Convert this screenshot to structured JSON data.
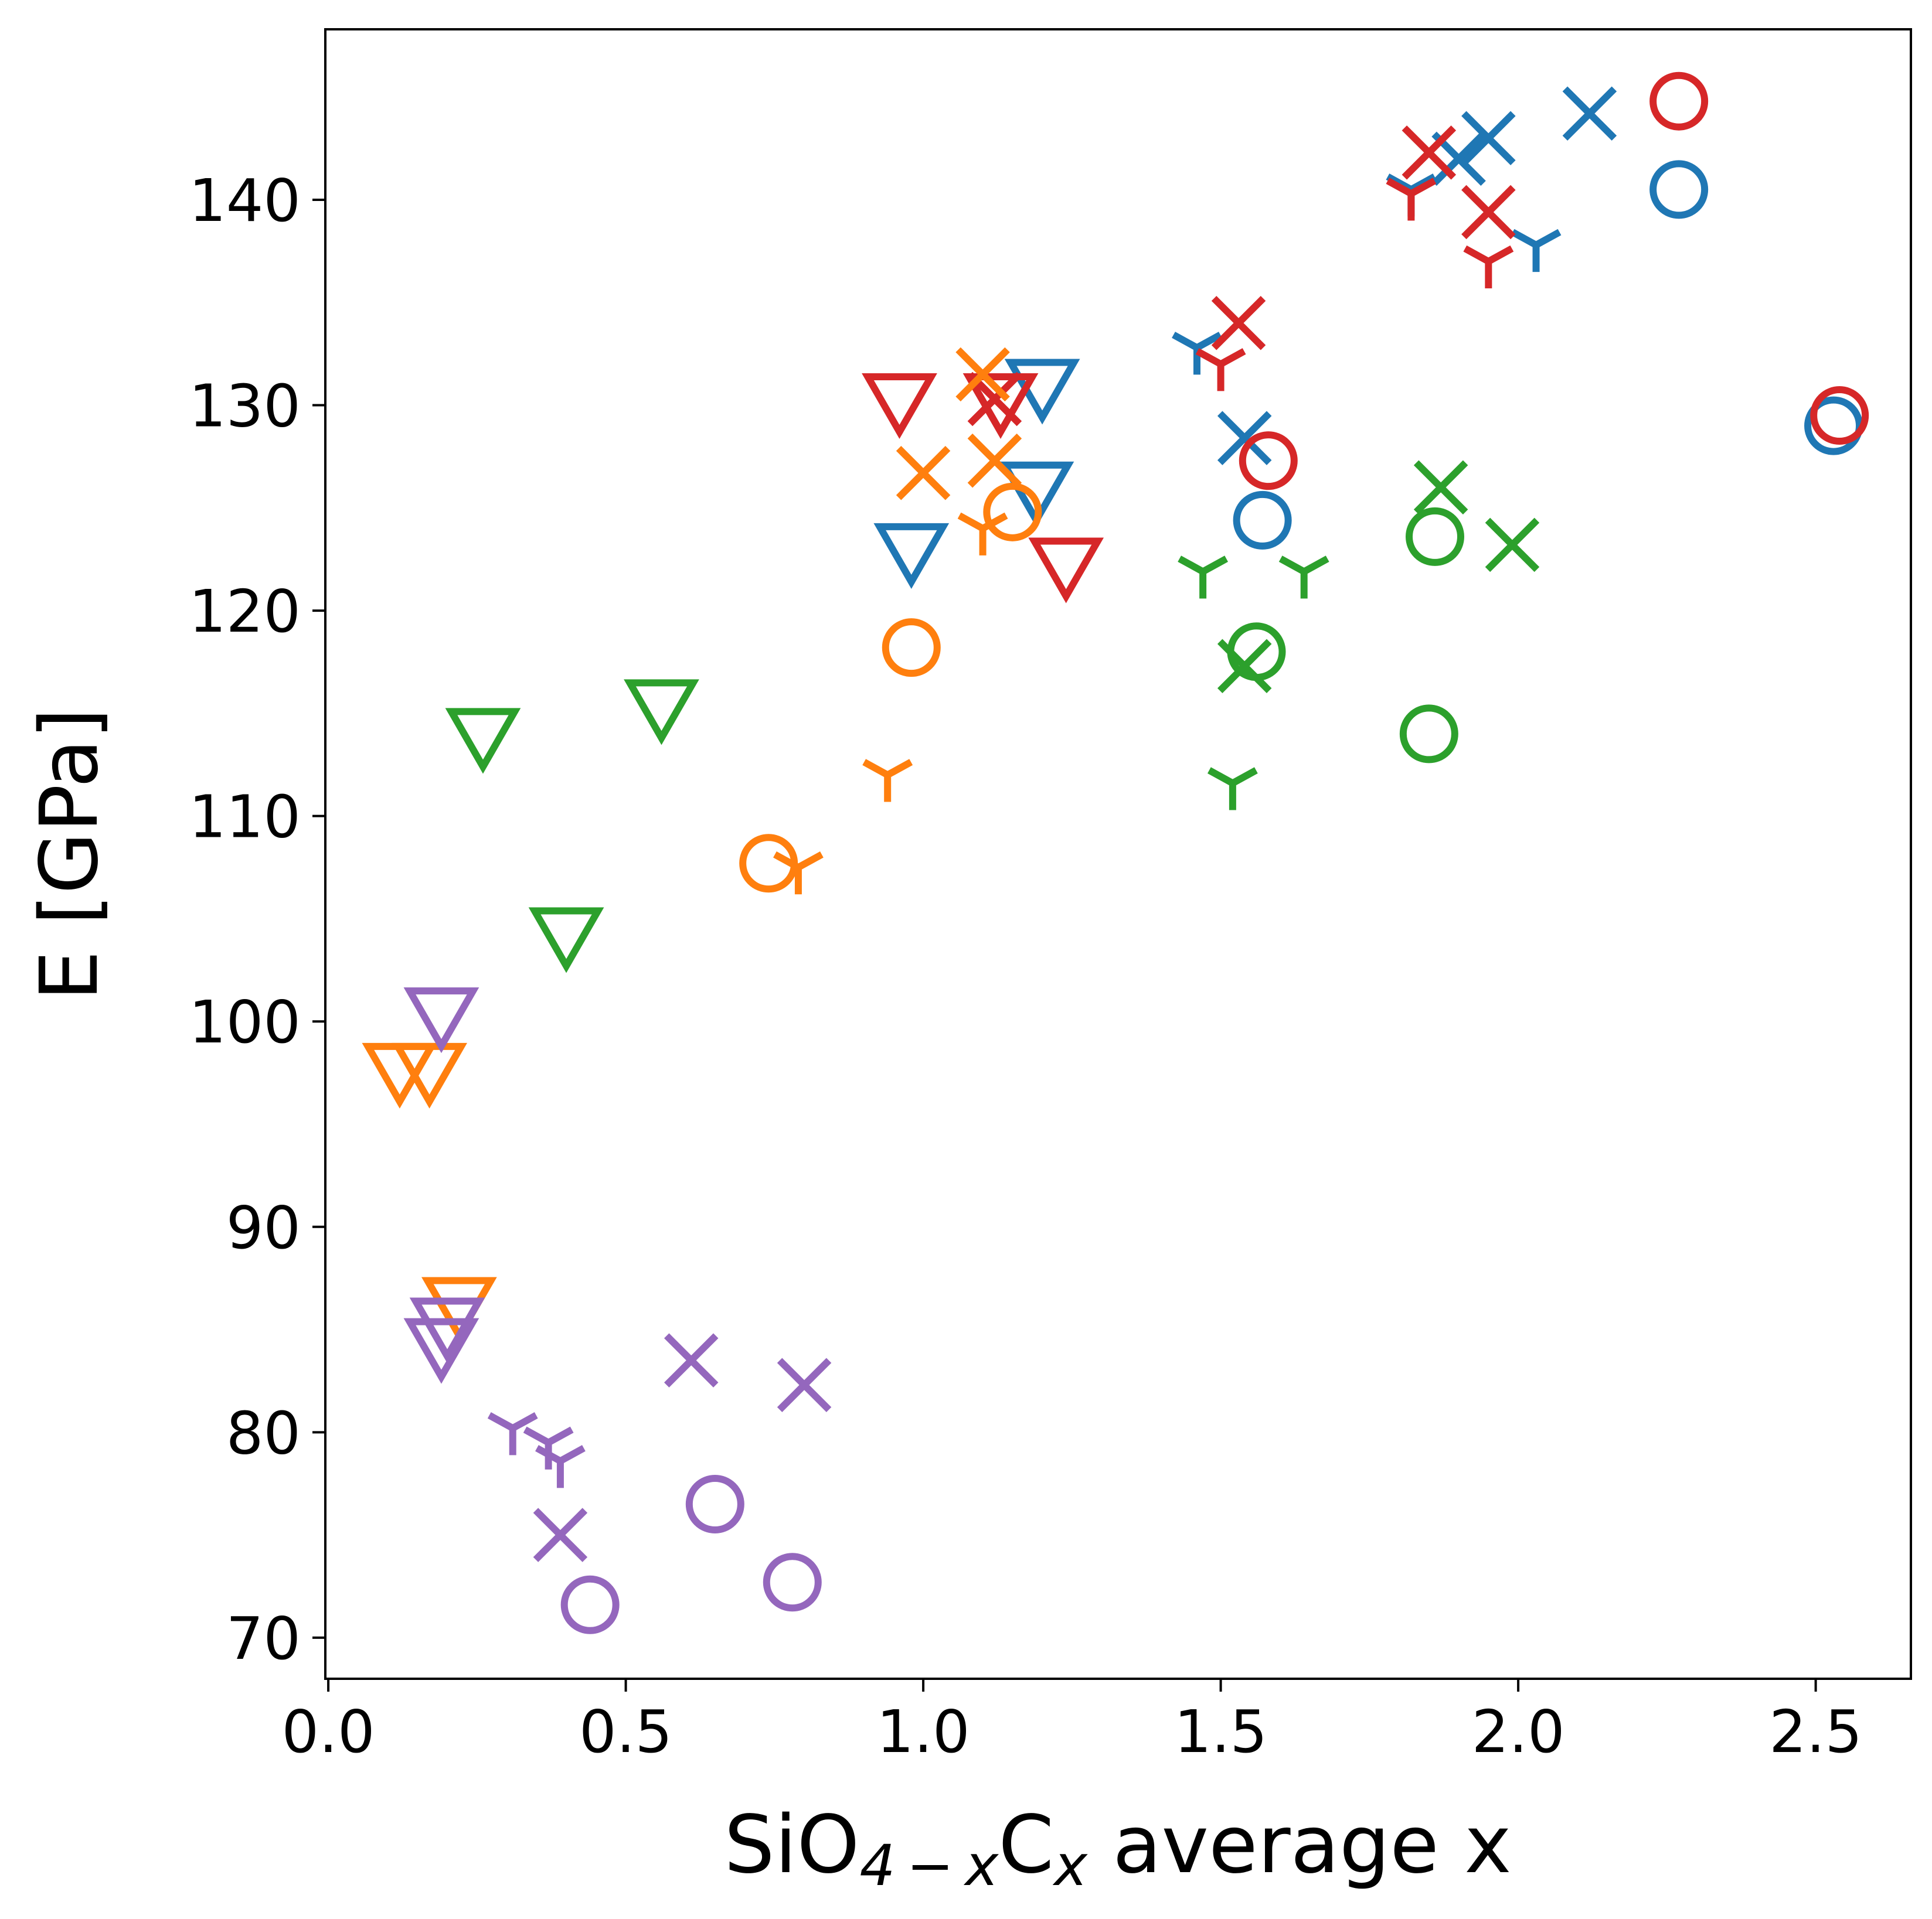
{
  "chart_data": {
    "type": "scatter",
    "title": "",
    "xlabel": {
      "base": "SiO",
      "sub1": "4 − x",
      "mid": "C",
      "sub2": "x",
      "tail": " average x"
    },
    "ylabel": "E [GPa]",
    "xlim": [
      -0.005,
      2.66
    ],
    "ylim": [
      68.0,
      148.3
    ],
    "xticks": [
      0.0,
      0.5,
      1.0,
      1.5,
      2.0,
      2.5
    ],
    "xtick_labels": [
      "0.0",
      "0.5",
      "1.0",
      "1.5",
      "2.0",
      "2.5"
    ],
    "yticks": [
      70,
      80,
      90,
      100,
      110,
      120,
      130,
      140
    ],
    "ytick_labels": [
      "70",
      "80",
      "90",
      "100",
      "110",
      "120",
      "130",
      "140"
    ],
    "grid": false,
    "legend": false,
    "series": [
      {
        "name": "blue",
        "color": "#1f77b4",
        "circle": [
          [
            2.27,
            140.5
          ],
          [
            1.57,
            124.4
          ],
          [
            2.53,
            129.0
          ]
        ],
        "x": [
          [
            1.9,
            142.0
          ],
          [
            1.95,
            143.0
          ],
          [
            2.12,
            144.2
          ],
          [
            1.54,
            128.4
          ]
        ],
        "tri": [
          [
            1.2,
            131.0
          ],
          [
            1.19,
            126.0
          ],
          [
            0.98,
            123.0
          ]
        ],
        "y": [
          [
            1.82,
            140.5
          ],
          [
            2.03,
            137.8
          ],
          [
            1.46,
            132.8
          ]
        ]
      },
      {
        "name": "red",
        "color": "#d62728",
        "circle": [
          [
            2.27,
            144.8
          ],
          [
            1.58,
            127.3
          ],
          [
            2.54,
            129.5
          ]
        ],
        "x": [
          [
            1.85,
            142.3
          ],
          [
            1.95,
            139.4
          ],
          [
            1.53,
            134.0
          ],
          [
            1.12,
            130.3
          ]
        ],
        "tri": [
          [
            0.96,
            130.3
          ],
          [
            1.13,
            130.3
          ],
          [
            1.24,
            122.3
          ]
        ],
        "y": [
          [
            1.82,
            140.3
          ],
          [
            1.95,
            137.0
          ],
          [
            1.5,
            132.0
          ]
        ]
      },
      {
        "name": "orange",
        "color": "#ff7f0e",
        "circle": [
          [
            1.15,
            124.8
          ],
          [
            0.98,
            118.2
          ],
          [
            0.74,
            107.7
          ]
        ],
        "x": [
          [
            1.1,
            131.5
          ],
          [
            1.0,
            126.7
          ],
          [
            1.12,
            127.3
          ]
        ],
        "tri": [
          [
            0.12,
            97.7
          ],
          [
            0.17,
            97.7
          ],
          [
            0.22,
            86.3
          ]
        ],
        "y": [
          [
            1.1,
            124.0
          ],
          [
            0.94,
            112.0
          ],
          [
            0.79,
            107.5
          ]
        ]
      },
      {
        "name": "green",
        "color": "#2ca02c",
        "circle": [
          [
            1.86,
            123.6
          ],
          [
            1.56,
            118.0
          ],
          [
            1.85,
            114.0
          ]
        ],
        "x": [
          [
            1.87,
            126.0
          ],
          [
            1.99,
            123.2
          ],
          [
            1.54,
            117.3
          ]
        ],
        "tri": [
          [
            0.26,
            114.0
          ],
          [
            0.56,
            115.4
          ],
          [
            0.4,
            104.3
          ]
        ],
        "y": [
          [
            1.47,
            121.9
          ],
          [
            1.64,
            121.9
          ],
          [
            1.52,
            111.6
          ]
        ]
      },
      {
        "name": "purple",
        "color": "#9467bd",
        "circle": [
          [
            0.65,
            76.5
          ],
          [
            0.78,
            72.7
          ],
          [
            0.44,
            71.6
          ]
        ],
        "x": [
          [
            0.61,
            83.5
          ],
          [
            0.8,
            82.3
          ],
          [
            0.39,
            75.0
          ]
        ],
        "tri": [
          [
            0.19,
            100.4
          ],
          [
            0.2,
            85.3
          ],
          [
            0.19,
            84.3
          ]
        ],
        "y": [
          [
            0.31,
            80.2
          ],
          [
            0.37,
            79.5
          ],
          [
            0.39,
            78.6
          ]
        ]
      }
    ]
  }
}
